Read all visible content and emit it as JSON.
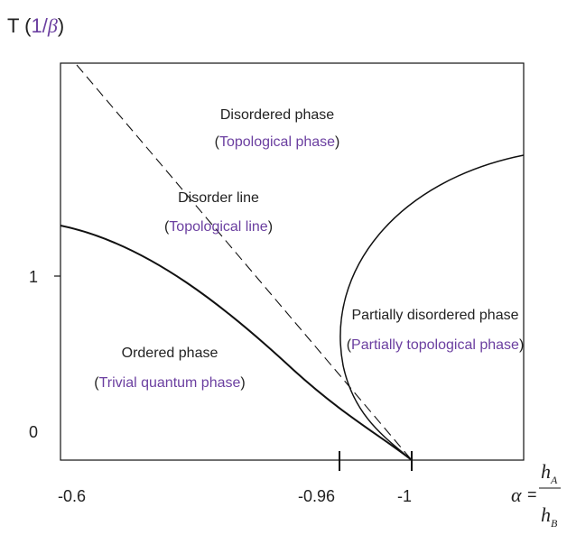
{
  "axes": {
    "y_title": {
      "prefix": "T (",
      "unit": "1/",
      "symbol": "β",
      "suffix": ")"
    },
    "x_title": {
      "alpha": "α",
      "eq": "=",
      "num": "h",
      "num_sub": "A",
      "den": "h",
      "den_sub": "B"
    },
    "y_ticks": [
      "1",
      "0"
    ],
    "x_ticks": [
      "-0.6",
      "-0.96",
      "-1"
    ]
  },
  "regions": {
    "disordered": {
      "name": "Disordered phase",
      "alt": "Topological phase"
    },
    "disorder_line": {
      "name": "Disorder line",
      "alt": "Topological line"
    },
    "partially": {
      "name": "Partially disordered phase",
      "alt": "Partially topological phase"
    },
    "ordered": {
      "name": "Ordered  phase",
      "alt": "Trivial quantum phase"
    }
  },
  "colors": {
    "line": "#111111",
    "accent_text": "#6b3fa0"
  }
}
